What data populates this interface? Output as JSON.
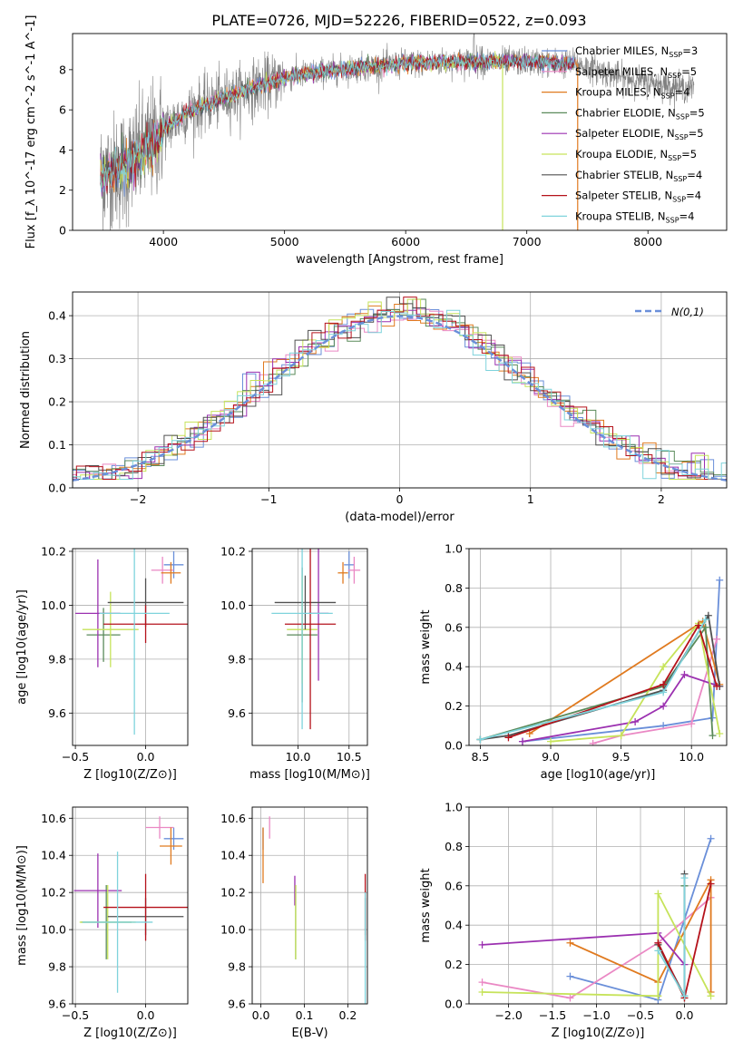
{
  "figure_title": "PLATE=0726, MJD=52226, FIBERID=0522, z=0.093",
  "models": [
    {
      "name": "Chabrier MILES",
      "nssp": "3",
      "color": "#6a8fd9"
    },
    {
      "name": "Salpeter MILES",
      "nssp": "5",
      "color": "#ea88c4"
    },
    {
      "name": "Kroupa MILES",
      "nssp": "4",
      "color": "#e07a1f"
    },
    {
      "name": "Chabrier ELODIE",
      "nssp": "5",
      "color": "#5a8a5a"
    },
    {
      "name": "Salpeter ELODIE",
      "nssp": "5",
      "color": "#9b30b0"
    },
    {
      "name": "Kroupa ELODIE",
      "nssp": "5",
      "color": "#c6e35a"
    },
    {
      "name": "Chabrier STELIB",
      "nssp": "4",
      "color": "#505050"
    },
    {
      "name": "Salpeter STELIB",
      "nssp": "4",
      "color": "#b5121b"
    },
    {
      "name": "Kroupa STELIB",
      "nssp": "4",
      "color": "#7fd3dc"
    }
  ],
  "chart_data": [
    {
      "type": "line",
      "panel": "spectrum",
      "xlabel": "wavelength [Angstrom, rest frame]",
      "ylabel": "Flux [f_λ 10^-17 erg cm^-2 s^-1 A^-1]",
      "xlim": [
        3250,
        8650
      ],
      "ylim": [
        0,
        9.8
      ],
      "xticks": [
        4000,
        5000,
        6000,
        7000,
        8000
      ],
      "yticks": [
        0,
        2,
        4,
        6,
        8
      ],
      "data_color": "#808080",
      "continuum": {
        "x": [
          3500,
          3700,
          3850,
          4000,
          4200,
          4500,
          4800,
          5000,
          5300,
          5600,
          6000,
          6500,
          7000,
          7400,
          7800,
          8300
        ],
        "y": [
          2.7,
          3.2,
          4.0,
          5.0,
          5.9,
          6.6,
          7.2,
          7.6,
          7.9,
          8.1,
          8.3,
          8.4,
          8.4,
          8.3,
          7.6,
          7.1
        ]
      }
    },
    {
      "type": "line",
      "panel": "residual-histogram",
      "xlabel": "(data-model)/error",
      "ylabel": "Normed distribution",
      "xlim": [
        -2.5,
        2.5
      ],
      "ylim": [
        0,
        0.455
      ],
      "xticks": [
        -2,
        -1,
        0,
        1,
        2
      ],
      "yticks": [
        0.0,
        0.1,
        0.2,
        0.3,
        0.4
      ],
      "legend": "N(0,1)",
      "gauss": {
        "mu": 0,
        "sigma": 1,
        "color": "#6a8fd9"
      }
    },
    {
      "type": "scatter",
      "panel": "age-vs-Z",
      "xlabel": "Z [log10(Z/Z⊙)]",
      "ylabel": "age [log10(age/yr)]",
      "xlim": [
        -0.52,
        0.3
      ],
      "ylim": [
        9.48,
        10.21
      ],
      "xticks": [
        -0.5,
        0.0
      ],
      "yticks": [
        9.6,
        9.8,
        10.0,
        10.2
      ],
      "points": [
        {
          "model": 0,
          "x": 0.2,
          "y": 10.15,
          "xerr": 0.07,
          "yerr": 0.05
        },
        {
          "model": 1,
          "x": 0.12,
          "y": 10.13,
          "xerr": 0.08,
          "yerr": 0.05
        },
        {
          "model": 2,
          "x": 0.18,
          "y": 10.12,
          "xerr": 0.07,
          "yerr": 0.04
        },
        {
          "model": 3,
          "x": -0.3,
          "y": 9.89,
          "xerr": 0.12,
          "yerr": 0.1
        },
        {
          "model": 4,
          "x": -0.34,
          "y": 9.97,
          "xerr": 0.16,
          "yerr": 0.2
        },
        {
          "model": 5,
          "x": -0.25,
          "y": 9.91,
          "xerr": 0.2,
          "yerr": 0.14
        },
        {
          "model": 6,
          "x": 0.0,
          "y": 10.01,
          "xerr": 0.27,
          "yerr": 0.09
        },
        {
          "model": 7,
          "x": 0.0,
          "y": 9.93,
          "xerr": 0.3,
          "yerr": 0.07
        },
        {
          "model": 8,
          "x": -0.08,
          "y": 9.97,
          "xerr": 0.25,
          "yerr": 0.45
        }
      ]
    },
    {
      "type": "scatter",
      "panel": "age-vs-mass",
      "xlabel": "mass [log10(M/M⊙)]",
      "ylabel": "",
      "xlim": [
        9.55,
        10.68
      ],
      "ylim": [
        9.48,
        10.21
      ],
      "xticks": [
        10.0,
        10.5
      ],
      "yticks": [
        9.6,
        9.8,
        10.0,
        10.2
      ],
      "points": [
        {
          "model": 0,
          "x": 10.5,
          "y": 10.15,
          "xerr": 0.05,
          "yerr": 0.05
        },
        {
          "model": 1,
          "x": 10.55,
          "y": 10.13,
          "xerr": 0.06,
          "yerr": 0.05
        },
        {
          "model": 2,
          "x": 10.44,
          "y": 10.12,
          "xerr": 0.05,
          "yerr": 0.04
        },
        {
          "model": 3,
          "x": 10.04,
          "y": 9.89,
          "xerr": 0.15,
          "yerr": 0.25
        },
        {
          "model": 4,
          "x": 10.2,
          "y": 9.97,
          "xerr": 0.1,
          "yerr": 0.25
        },
        {
          "model": 5,
          "x": 10.04,
          "y": 9.91,
          "xerr": 0.15,
          "yerr": 0.2
        },
        {
          "model": 6,
          "x": 10.07,
          "y": 10.01,
          "xerr": 0.3,
          "yerr": 0.1
        },
        {
          "model": 7,
          "x": 10.12,
          "y": 9.93,
          "xerr": 0.25,
          "yerr": 0.39
        },
        {
          "model": 8,
          "x": 10.04,
          "y": 9.97,
          "xerr": 0.3,
          "yerr": 0.43
        }
      ]
    },
    {
      "type": "line",
      "panel": "mass-weight-vs-age",
      "xlabel": "age [log10(age/yr)]",
      "ylabel": "mass weight",
      "xlim": [
        8.42,
        10.25
      ],
      "ylim": [
        0,
        1.0
      ],
      "xticks": [
        8.5,
        9.0,
        9.5,
        10.0
      ],
      "yticks": [
        0.0,
        0.2,
        0.4,
        0.6,
        0.8,
        1.0
      ],
      "series": [
        {
          "model": 0,
          "x": [
            8.8,
            9.8,
            10.15,
            10.2
          ],
          "y": [
            0.02,
            0.1,
            0.14,
            0.84
          ]
        },
        {
          "model": 1,
          "x": [
            9.3,
            9.5,
            10.0,
            10.18
          ],
          "y": [
            0.01,
            0.05,
            0.11,
            0.54
          ]
        },
        {
          "model": 2,
          "x": [
            8.85,
            10.08,
            10.2
          ],
          "y": [
            0.06,
            0.63,
            0.31
          ]
        },
        {
          "model": 3,
          "x": [
            8.5,
            9.8,
            10.1,
            10.15
          ],
          "y": [
            0.03,
            0.3,
            0.6,
            0.05
          ]
        },
        {
          "model": 4,
          "x": [
            8.8,
            9.6,
            9.8,
            9.95,
            10.2
          ],
          "y": [
            0.02,
            0.12,
            0.2,
            0.36,
            0.3
          ]
        },
        {
          "model": 5,
          "x": [
            9.0,
            9.5,
            9.8,
            10.05,
            10.2
          ],
          "y": [
            0.02,
            0.05,
            0.4,
            0.62,
            0.06
          ]
        },
        {
          "model": 6,
          "x": [
            8.5,
            8.7,
            9.8,
            10.12,
            10.2
          ],
          "y": [
            0.03,
            0.05,
            0.28,
            0.66,
            0.3
          ]
        },
        {
          "model": 7,
          "x": [
            8.7,
            9.8,
            10.05,
            10.18
          ],
          "y": [
            0.04,
            0.31,
            0.61,
            0.3
          ]
        },
        {
          "model": 8,
          "x": [
            8.5,
            9.8,
            10.1
          ],
          "y": [
            0.03,
            0.27,
            0.64
          ]
        }
      ]
    },
    {
      "type": "scatter",
      "panel": "mass-vs-Z",
      "xlabel": "Z [log10(Z/Z⊙)]",
      "ylabel": "mass [log10(M/M⊙)]",
      "xlim": [
        -0.52,
        0.3
      ],
      "ylim": [
        9.6,
        10.66
      ],
      "xticks": [
        -0.5,
        0.0
      ],
      "yticks": [
        9.6,
        9.8,
        10.0,
        10.2,
        10.4,
        10.6
      ],
      "points": [
        {
          "model": 0,
          "x": 0.2,
          "y": 10.49,
          "xerr": 0.07,
          "yerr": 0.06
        },
        {
          "model": 1,
          "x": 0.1,
          "y": 10.55,
          "xerr": 0.1,
          "yerr": 0.06
        },
        {
          "model": 2,
          "x": 0.18,
          "y": 10.45,
          "xerr": 0.08,
          "yerr": 0.1
        },
        {
          "model": 3,
          "x": -0.28,
          "y": 10.04,
          "xerr": 0.18,
          "yerr": 0.2
        },
        {
          "model": 4,
          "x": -0.34,
          "y": 10.21,
          "xerr": 0.17,
          "yerr": 0.2
        },
        {
          "model": 5,
          "x": -0.27,
          "y": 10.04,
          "xerr": 0.2,
          "yerr": 0.2
        },
        {
          "model": 6,
          "x": 0.0,
          "y": 10.07,
          "xerr": 0.27,
          "yerr": 0.1
        },
        {
          "model": 7,
          "x": 0.0,
          "y": 10.12,
          "xerr": 0.3,
          "yerr": 0.18
        },
        {
          "model": 8,
          "x": -0.2,
          "y": 10.04,
          "xerr": 0.25,
          "yerr": 0.38
        }
      ]
    },
    {
      "type": "scatter",
      "panel": "mass-vs-EBV",
      "xlabel": "E(B-V)",
      "ylabel": "",
      "xlim": [
        -0.02,
        0.245
      ],
      "ylim": [
        9.6,
        10.66
      ],
      "xticks": [
        0.0,
        0.1,
        0.2
      ],
      "yticks": [
        9.6,
        9.8,
        10.0,
        10.2,
        10.4,
        10.6
      ],
      "points": [
        {
          "model": 0,
          "x": 0.005,
          "y": 10.49,
          "xerr": 0.0,
          "yerr": 0.06
        },
        {
          "model": 1,
          "x": 0.02,
          "y": 10.55,
          "xerr": 0.0,
          "yerr": 0.06
        },
        {
          "model": 2,
          "x": 0.005,
          "y": 10.4,
          "xerr": 0.0,
          "yerr": 0.15
        },
        {
          "model": 3,
          "x": 0.08,
          "y": 10.04,
          "xerr": 0.0,
          "yerr": 0.2
        },
        {
          "model": 4,
          "x": 0.078,
          "y": 10.21,
          "xerr": 0.0,
          "yerr": 0.08
        },
        {
          "model": 5,
          "x": 0.08,
          "y": 10.04,
          "xerr": 0.0,
          "yerr": 0.2
        },
        {
          "model": 6,
          "x": 0.24,
          "y": 10.07,
          "xerr": 0.0,
          "yerr": 0.1
        },
        {
          "model": 7,
          "x": 0.24,
          "y": 10.12,
          "xerr": 0.0,
          "yerr": 0.18
        },
        {
          "model": 8,
          "x": 0.24,
          "y": 9.9,
          "xerr": 0.0,
          "yerr": 0.3
        }
      ]
    },
    {
      "type": "line",
      "panel": "mass-weight-vs-Z",
      "xlabel": "Z [log10(Z/Z⊙)]",
      "ylabel": "mass weight",
      "xlim": [
        -2.45,
        0.48
      ],
      "ylim": [
        0,
        1.0
      ],
      "xticks": [
        -2.0,
        -1.5,
        -1.0,
        -0.5,
        0.0
      ],
      "yticks": [
        0.0,
        0.2,
        0.4,
        0.6,
        0.8,
        1.0
      ],
      "series": [
        {
          "model": 0,
          "x": [
            -1.3,
            -0.3,
            0.3
          ],
          "y": [
            0.14,
            0.02,
            0.84
          ]
        },
        {
          "model": 1,
          "x": [
            -2.3,
            -1.3,
            -0.3,
            0.3
          ],
          "y": [
            0.11,
            0.03,
            0.31,
            0.54
          ]
        },
        {
          "model": 2,
          "x": [
            -1.3,
            -0.3,
            0.3,
            0.3
          ],
          "y": [
            0.31,
            0.11,
            0.63,
            0.06
          ]
        },
        {
          "model": 3,
          "x": [
            -0.3,
            0.0,
            0.0
          ],
          "y": [
            0.3,
            0.03,
            0.6
          ]
        },
        {
          "model": 4,
          "x": [
            -2.3,
            -0.3,
            0.0
          ],
          "y": [
            0.3,
            0.36,
            0.2
          ]
        },
        {
          "model": 5,
          "x": [
            -2.3,
            -0.3,
            -0.3,
            0.3
          ],
          "y": [
            0.06,
            0.04,
            0.56,
            0.04
          ]
        },
        {
          "model": 6,
          "x": [
            -0.3,
            0.0,
            0.0
          ],
          "y": [
            0.3,
            0.04,
            0.66
          ]
        },
        {
          "model": 7,
          "x": [
            -0.3,
            0.0,
            0.3
          ],
          "y": [
            0.31,
            0.03,
            0.61
          ]
        },
        {
          "model": 8,
          "x": [
            -0.3,
            0.0,
            0.0
          ],
          "y": [
            0.27,
            0.04,
            0.64
          ]
        }
      ]
    }
  ]
}
